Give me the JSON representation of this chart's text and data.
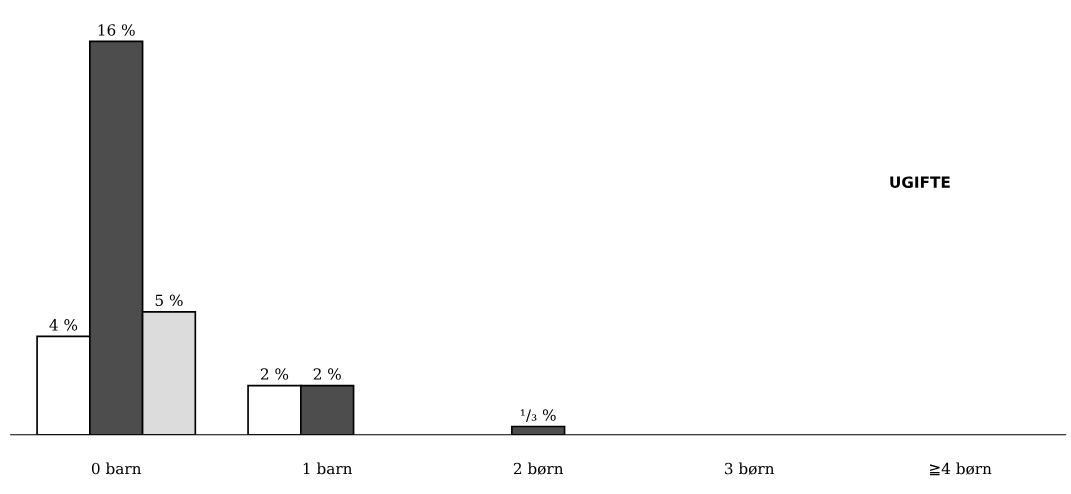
{
  "chart_data": {
    "type": "bar",
    "categories": [
      "0 barn",
      "1 barn",
      "2 børn",
      "3 børn",
      "≧4 børn"
    ],
    "series": [
      {
        "color": "#ffffff",
        "values": [
          4,
          2,
          null,
          null,
          null
        ],
        "value_labels": [
          "4 %",
          "2 %",
          null,
          null,
          null
        ]
      },
      {
        "color": "#4d4d4d",
        "values": [
          16,
          2,
          0.333,
          null,
          null
        ],
        "value_labels": [
          "16 %",
          "2 %",
          "¹/₃ %",
          null,
          null
        ]
      },
      {
        "color": "#dcdcdc",
        "values": [
          5,
          null,
          null,
          null,
          null
        ],
        "value_labels": [
          "5 %",
          null,
          null,
          null,
          null
        ]
      }
    ],
    "annotations": [
      "UGIFTE"
    ]
  }
}
